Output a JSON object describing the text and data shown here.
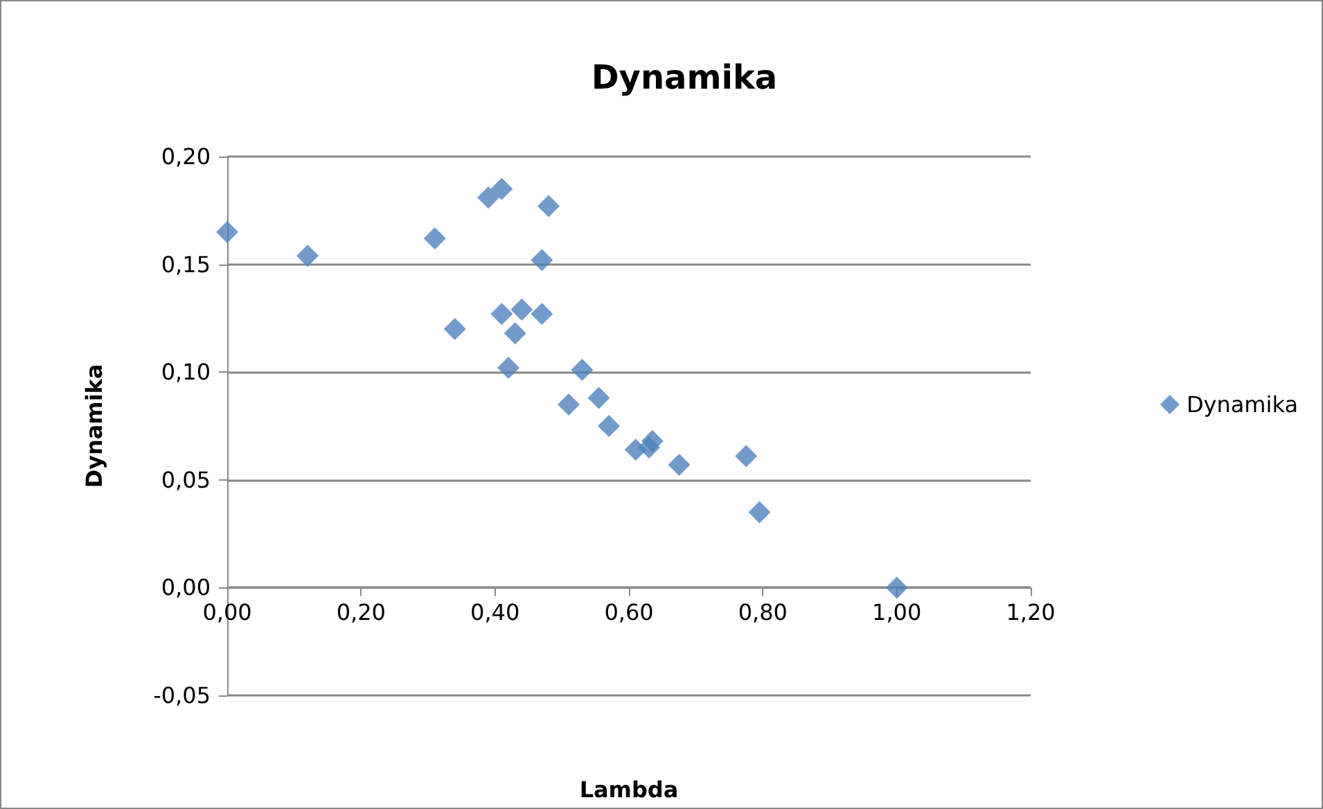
{
  "chart_data": {
    "type": "scatter",
    "title": "Dynamika",
    "xlabel": "Lambda",
    "ylabel": "Dynamika",
    "series": [
      {
        "name": "Dynamika",
        "color": "#4f81bd",
        "x": [
          0.0,
          0.12,
          0.31,
          0.34,
          0.39,
          0.41,
          0.48,
          0.47,
          0.41,
          0.44,
          0.47,
          0.43,
          0.42,
          0.53,
          0.51,
          0.555,
          0.57,
          0.61,
          0.635,
          0.63,
          0.675,
          0.775,
          0.795,
          1.0
        ],
        "values": [
          0.165,
          0.154,
          0.162,
          0.12,
          0.181,
          0.185,
          0.177,
          0.152,
          0.127,
          0.129,
          0.127,
          0.118,
          0.102,
          0.101,
          0.085,
          0.088,
          0.075,
          0.064,
          0.068,
          0.065,
          0.057,
          0.061,
          0.035,
          0.0
        ]
      }
    ],
    "xlim": [
      0,
      1.2
    ],
    "xticks": [
      {
        "value": 0,
        "label": "0,00"
      },
      {
        "value": 0.2,
        "label": "0,20"
      },
      {
        "value": 0.4,
        "label": "0,40"
      },
      {
        "value": 0.6,
        "label": "0,60"
      },
      {
        "value": 0.8,
        "label": "0,80"
      },
      {
        "value": 1.0,
        "label": "1,00"
      },
      {
        "value": 1.2,
        "label": "1,20"
      }
    ],
    "ylim": [
      -0.05,
      0.2
    ],
    "yticks": [
      {
        "value": -0.05,
        "label": "-0,05"
      },
      {
        "value": 0,
        "label": "0,00"
      },
      {
        "value": 0.05,
        "label": "0,05"
      },
      {
        "value": 0.1,
        "label": "0,10"
      },
      {
        "value": 0.15,
        "label": "0,15"
      },
      {
        "value": 0.2,
        "label": "0,20"
      }
    ],
    "grid": "y",
    "legend": "right",
    "marker": "diamond"
  }
}
